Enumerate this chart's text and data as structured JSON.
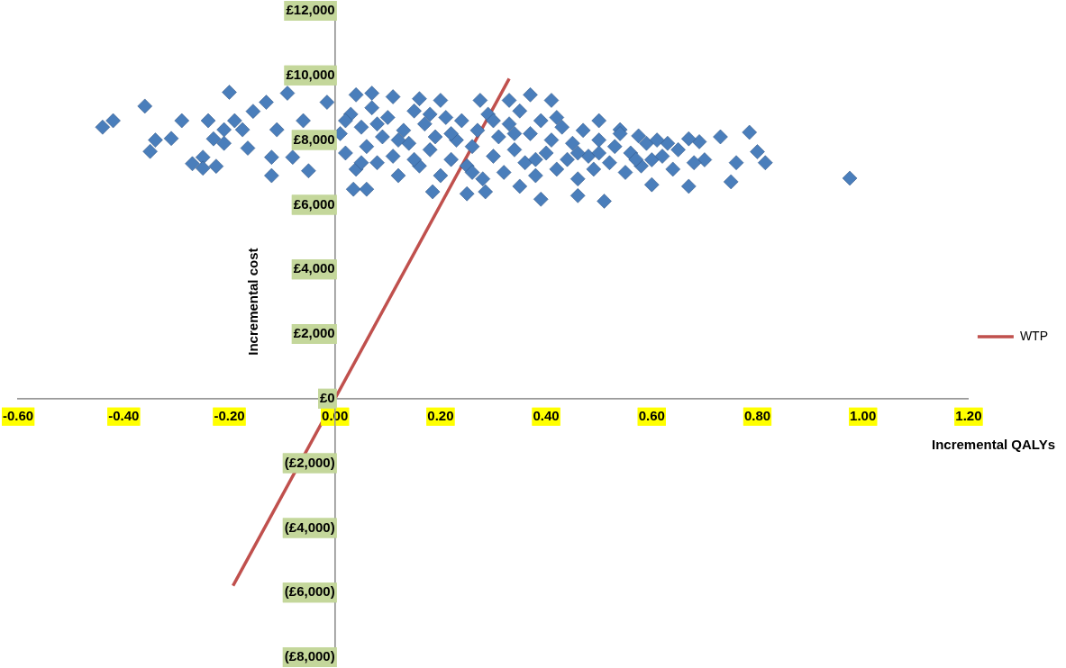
{
  "chart_data": {
    "type": "scatter",
    "xlabel": "Incremental QALYs",
    "ylabel": "Incremental cost",
    "legend": "right",
    "grid": false,
    "marker": "diamond",
    "xlim": [
      -0.6,
      1.2
    ],
    "ylim": [
      -8000,
      12000
    ],
    "xticks": [
      {
        "value": -0.6,
        "label": "-0.60"
      },
      {
        "value": -0.4,
        "label": "-0.40"
      },
      {
        "value": -0.2,
        "label": "-0.20"
      },
      {
        "value": 0,
        "label": "0.00"
      },
      {
        "value": 0.2,
        "label": "0.20"
      },
      {
        "value": 0.4,
        "label": "0.40"
      },
      {
        "value": 0.6,
        "label": "0.60"
      },
      {
        "value": 0.8,
        "label": "0.80"
      },
      {
        "value": 1,
        "label": "1.00"
      },
      {
        "value": 1.2,
        "label": "1.20"
      }
    ],
    "yticks": [
      {
        "value": -8000,
        "label": "(£8,000)"
      },
      {
        "value": -6000,
        "label": "(£6,000)"
      },
      {
        "value": -4000,
        "label": "(£4,000)"
      },
      {
        "value": -2000,
        "label": "(£2,000)"
      },
      {
        "value": 0,
        "label": "£0"
      },
      {
        "value": 2000,
        "label": "£2,000"
      },
      {
        "value": 4000,
        "label": "£4,000"
      },
      {
        "value": 6000,
        "label": "£6,000"
      },
      {
        "value": 8000,
        "label": "£8,000"
      },
      {
        "value": 10000,
        "label": "£10,000"
      },
      {
        "value": 12000,
        "label": "£12,000"
      }
    ],
    "series": [
      {
        "color": "#4a7ebb",
        "x": [
          -0.44,
          -0.42,
          -0.36,
          -0.35,
          -0.34,
          -0.31,
          -0.29,
          -0.27,
          -0.25,
          -0.25,
          -0.225,
          -0.2,
          -0.24,
          -0.23,
          -0.21,
          -0.19,
          -0.21,
          -0.175,
          -0.165,
          -0.155,
          -0.13,
          -0.12,
          -0.12,
          -0.11,
          -0.09,
          -0.08,
          -0.06,
          -0.05,
          -0.015,
          0.04,
          0.07,
          0.11,
          0.16,
          0.2,
          0.275,
          0.33,
          0.37,
          0.41,
          0.035,
          0.06,
          0.185,
          0.25,
          0.285,
          0.35,
          0.39,
          0.46,
          0.51,
          0.6,
          0.67,
          0.75,
          0.73,
          0.785,
          0.815,
          0.8,
          0.76,
          0.7,
          0.69,
          0.67,
          0.63,
          0.6,
          0.575,
          0.54,
          0.5,
          0.975,
          0.01,
          0.02,
          0.03,
          0.04,
          0.05,
          0.06,
          0.07,
          0.08,
          0.09,
          0.1,
          0.11,
          0.12,
          0.13,
          0.14,
          0.15,
          0.16,
          0.17,
          0.18,
          0.19,
          0.2,
          0.21,
          0.22,
          0.23,
          0.24,
          0.25,
          0.26,
          0.27,
          0.28,
          0.29,
          0.3,
          0.31,
          0.32,
          0.33,
          0.34,
          0.35,
          0.36,
          0.37,
          0.38,
          0.39,
          0.4,
          0.41,
          0.42,
          0.43,
          0.44,
          0.45,
          0.46,
          0.47,
          0.48,
          0.49,
          0.5,
          0.52,
          0.53,
          0.55,
          0.56,
          0.58,
          0.59,
          0.62,
          0.64,
          0.65,
          0.68,
          0.02,
          0.05,
          0.08,
          0.12,
          0.15,
          0.18,
          0.22,
          0.26,
          0.3,
          0.34,
          0.38,
          0.42,
          0.46,
          0.5,
          0.54,
          0.57,
          0.61
        ],
        "values": [
          8400,
          8600,
          9050,
          7650,
          8000,
          8050,
          8600,
          7270,
          7470,
          7130,
          7190,
          9480,
          8600,
          8040,
          8320,
          8600,
          7900,
          8320,
          7750,
          8890,
          9170,
          7470,
          6900,
          8320,
          9450,
          7470,
          8600,
          7050,
          9170,
          9400,
          9450,
          9340,
          9280,
          9230,
          9230,
          9230,
          9400,
          9230,
          6480,
          6480,
          6400,
          6340,
          6400,
          6570,
          6170,
          6280,
          6110,
          6620,
          6570,
          6710,
          8100,
          8240,
          7300,
          7640,
          7300,
          7390,
          7950,
          8040,
          7900,
          7390,
          8130,
          8320,
          8600,
          6820,
          8200,
          7600,
          8800,
          7100,
          8400,
          7800,
          9000,
          7300,
          8100,
          8700,
          7500,
          6900,
          8300,
          7900,
          8900,
          7200,
          8500,
          7700,
          8100,
          6900,
          8700,
          7400,
          8000,
          8600,
          7200,
          7800,
          8300,
          6800,
          8800,
          7500,
          8100,
          7000,
          8500,
          7700,
          8900,
          7300,
          8200,
          6900,
          8600,
          7600,
          8000,
          7100,
          8400,
          7400,
          7900,
          6800,
          8300,
          7500,
          7100,
          8000,
          7300,
          7800,
          7000,
          7600,
          7200,
          7900,
          7500,
          7100,
          7700,
          7300,
          8600,
          7300,
          8500,
          8000,
          7400,
          8800,
          8200,
          7000,
          8600,
          8200,
          7400,
          8700,
          7600,
          7600,
          8200,
          7400,
          8000
        ]
      },
      {
        "type": "line",
        "name": "WTP",
        "color": "#c0504d",
        "marker": "none",
        "x": [
          -0.193,
          0.33
        ],
        "values": [
          -5790,
          9900
        ]
      }
    ]
  }
}
